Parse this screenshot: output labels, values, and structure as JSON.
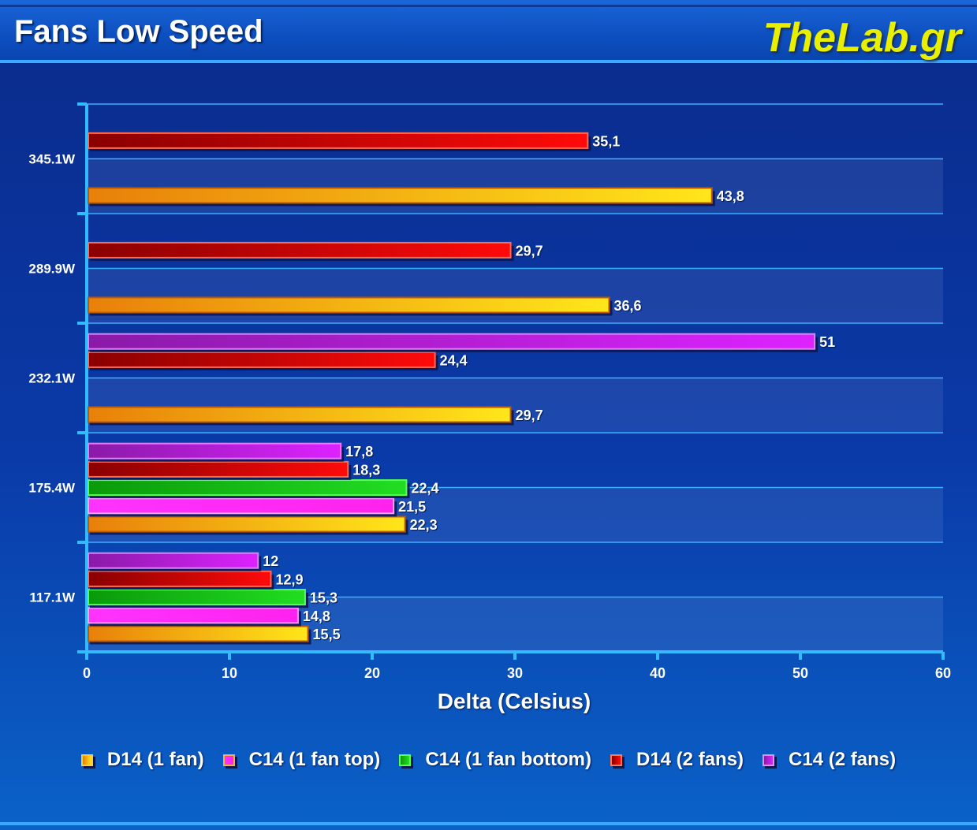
{
  "header": {
    "title": "Fans Low Speed",
    "brand": "TheLab.gr"
  },
  "chart_data": {
    "type": "bar",
    "orientation": "horizontal",
    "title": "Fans Low Speed",
    "xlabel": "Delta (Celsius)",
    "ylabel": "",
    "xlim": [
      0,
      60
    ],
    "xticks": [
      0,
      10,
      20,
      30,
      40,
      50,
      60
    ],
    "grid": true,
    "legend_position": "bottom",
    "categories": [
      "345.1W",
      "289.9W",
      "232.1W",
      "175.4W",
      "117.1W"
    ],
    "series": [
      {
        "name": "D14 (1 fan)",
        "color": "#f7b21a",
        "values": [
          43.8,
          36.6,
          29.7,
          22.3,
          15.5
        ],
        "labels": [
          "43,8",
          "36,6",
          "29,7",
          "22,3",
          "15,5"
        ]
      },
      {
        "name": "C14 (1 fan top)",
        "color": "#ff22ff",
        "values": [
          null,
          null,
          null,
          21.5,
          14.8
        ],
        "labels": [
          "",
          "",
          "",
          "21,5",
          "14,8"
        ]
      },
      {
        "name": "C14 (1 fan bottom)",
        "color": "#11bb11",
        "values": [
          null,
          null,
          null,
          22.4,
          15.3
        ],
        "labels": [
          "",
          "",
          "",
          "22,4",
          "15,3"
        ]
      },
      {
        "name": "D14 (2 fans)",
        "color": "#dd1111",
        "values": [
          35.1,
          29.7,
          24.4,
          18.3,
          12.9
        ],
        "labels": [
          "35,1",
          "29,7",
          "24,4",
          "18,3",
          "12,9"
        ]
      },
      {
        "name": "C14 (2 fans)",
        "color": "#bb22ee",
        "values": [
          null,
          null,
          51,
          17.8,
          12
        ],
        "labels": [
          "",
          "",
          "51",
          "17,8",
          "12"
        ]
      }
    ]
  }
}
